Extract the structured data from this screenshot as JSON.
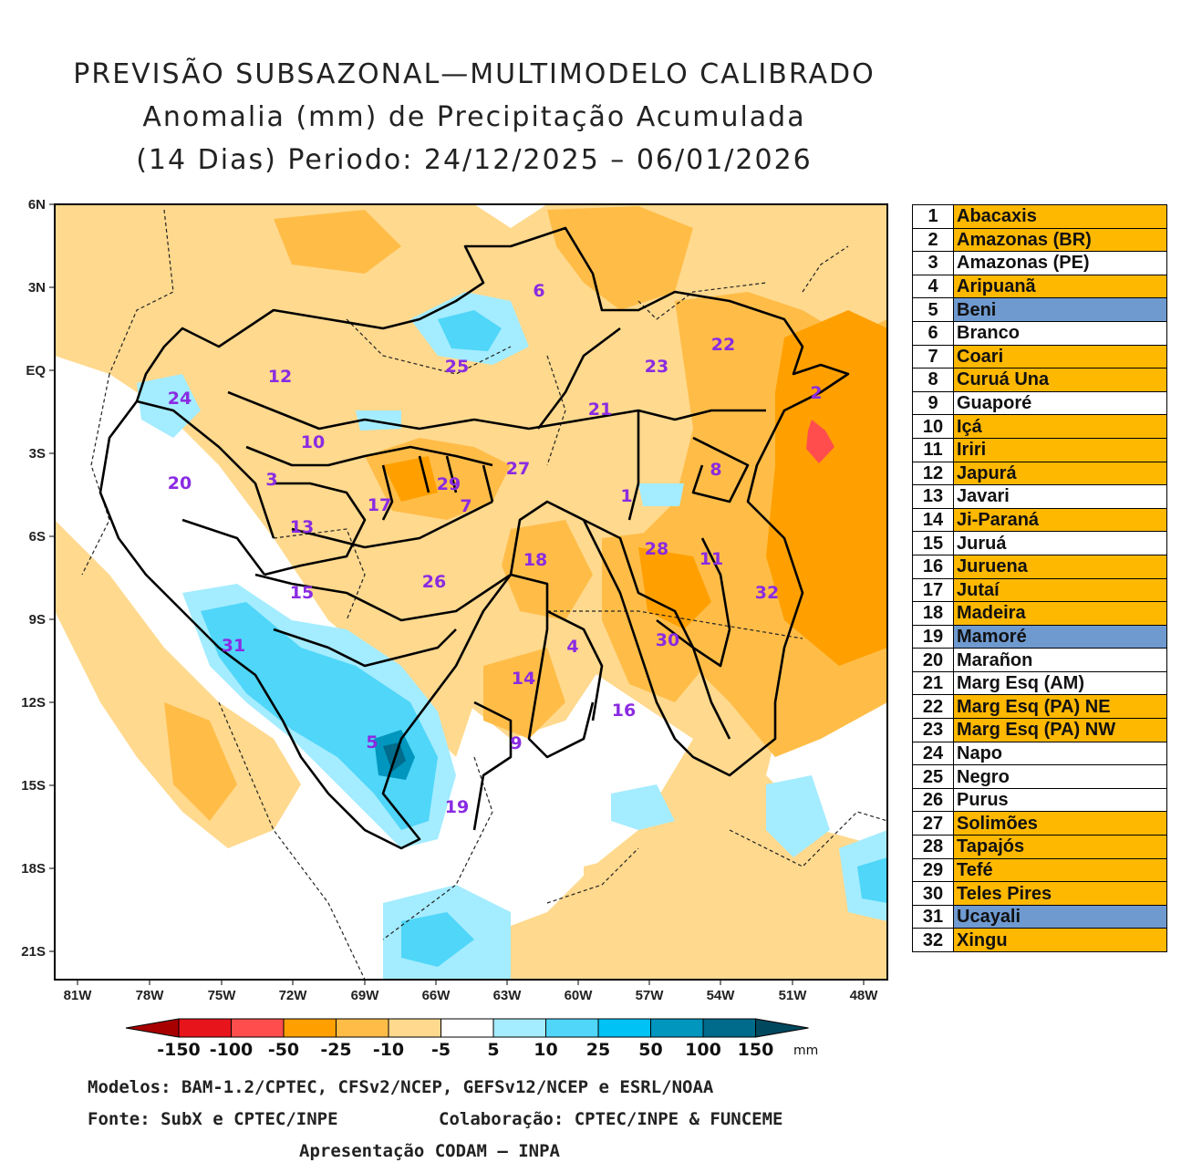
{
  "title": {
    "line1": "PREVISÃO SUBSAZONAL—MULTIMODELO CALIBRADO",
    "line2": "Anomalia (mm) de Precipitação Acumulada",
    "line3": "(14 Dias) Periodo: 24/12/2025 – 06/01/2026"
  },
  "axes": {
    "lat_labels": [
      "6N",
      "3N",
      "EQ",
      "3S",
      "6S",
      "9S",
      "12S",
      "15S",
      "18S",
      "21S"
    ],
    "lon_labels": [
      "81W",
      "78W",
      "75W",
      "72W",
      "69W",
      "66W",
      "63W",
      "60W",
      "57W",
      "54W",
      "51W",
      "48W"
    ]
  },
  "basin_numbers": [
    "1",
    "2",
    "3",
    "4",
    "5",
    "6",
    "7",
    "8",
    "9",
    "10",
    "11",
    "12",
    "13",
    "14",
    "15",
    "16",
    "17",
    "18",
    "19",
    "20",
    "21",
    "22",
    "23",
    "24",
    "25",
    "26",
    "27",
    "28",
    "29",
    "30",
    "31",
    "32"
  ],
  "legend": [
    {
      "num": "1",
      "name": "Abacaxis",
      "cat": "orange"
    },
    {
      "num": "2",
      "name": "Amazonas (BR)",
      "cat": "orange"
    },
    {
      "num": "3",
      "name": "Amazonas (PE)",
      "cat": "white"
    },
    {
      "num": "4",
      "name": "Aripuanã",
      "cat": "orange"
    },
    {
      "num": "5",
      "name": "Beni",
      "cat": "blue"
    },
    {
      "num": "6",
      "name": "Branco",
      "cat": "white"
    },
    {
      "num": "7",
      "name": "Coari",
      "cat": "orange"
    },
    {
      "num": "8",
      "name": "Curuá Una",
      "cat": "orange"
    },
    {
      "num": "9",
      "name": "Guaporé",
      "cat": "white"
    },
    {
      "num": "10",
      "name": "Içá",
      "cat": "orange"
    },
    {
      "num": "11",
      "name": "Iriri",
      "cat": "orange"
    },
    {
      "num": "12",
      "name": "Japurá",
      "cat": "orange"
    },
    {
      "num": "13",
      "name": "Javari",
      "cat": "white"
    },
    {
      "num": "14",
      "name": "Ji-Paraná",
      "cat": "orange"
    },
    {
      "num": "15",
      "name": "Juruá",
      "cat": "white"
    },
    {
      "num": "16",
      "name": "Juruena",
      "cat": "orange"
    },
    {
      "num": "17",
      "name": "Jutaí",
      "cat": "orange"
    },
    {
      "num": "18",
      "name": "Madeira",
      "cat": "orange"
    },
    {
      "num": "19",
      "name": "Mamoré",
      "cat": "blue"
    },
    {
      "num": "20",
      "name": "Marañon",
      "cat": "white"
    },
    {
      "num": "21",
      "name": "Marg Esq (AM)",
      "cat": "white"
    },
    {
      "num": "22",
      "name": "Marg Esq (PA) NE",
      "cat": "orange"
    },
    {
      "num": "23",
      "name": "Marg Esq (PA) NW",
      "cat": "orange"
    },
    {
      "num": "24",
      "name": "Napo",
      "cat": "white"
    },
    {
      "num": "25",
      "name": "Negro",
      "cat": "white"
    },
    {
      "num": "26",
      "name": "Purus",
      "cat": "white"
    },
    {
      "num": "27",
      "name": "Solimões",
      "cat": "orange"
    },
    {
      "num": "28",
      "name": "Tapajós",
      "cat": "orange"
    },
    {
      "num": "29",
      "name": "Tefé",
      "cat": "orange"
    },
    {
      "num": "30",
      "name": "Teles Pires",
      "cat": "orange"
    },
    {
      "num": "31",
      "name": "Ucayali",
      "cat": "blue"
    },
    {
      "num": "32",
      "name": "Xingu",
      "cat": "orange"
    }
  ],
  "colorbar": {
    "labels": [
      "-150",
      "-100",
      "-50",
      "-25",
      "-10",
      "-5",
      "5",
      "10",
      "25",
      "50",
      "100",
      "150"
    ],
    "unit": "mm",
    "colors": [
      "#a80000",
      "#e8141b",
      "#ff4d4d",
      "#ffa000",
      "#ffbd48",
      "#ffd98e",
      "#ffffff",
      "#a4ecff",
      "#4fd6f8",
      "#00c2f4",
      "#0096bd",
      "#006b8a",
      "#00485e"
    ]
  },
  "footer": {
    "models": "Modelos: BAM-1.2/CPTEC, CFSv2/NCEP, GEFSv12/NCEP e ESRL/NOAA",
    "source": "Fonte: SubX e CPTEC/INPE",
    "collab": "Colaboração: CPTEC/INPE & FUNCEME",
    "presentation": "Apresentação CODAM – INPA"
  },
  "colors": {
    "orange_light": "#ffd98e",
    "orange_mid": "#ffbd48",
    "orange_strong": "#ffa000",
    "blue_light": "#a4ecff",
    "blue_mid": "#4fd6f8",
    "blue_dark": "#0096bd",
    "blue_darkest": "#006b8a",
    "red": "#ff4d4d"
  }
}
